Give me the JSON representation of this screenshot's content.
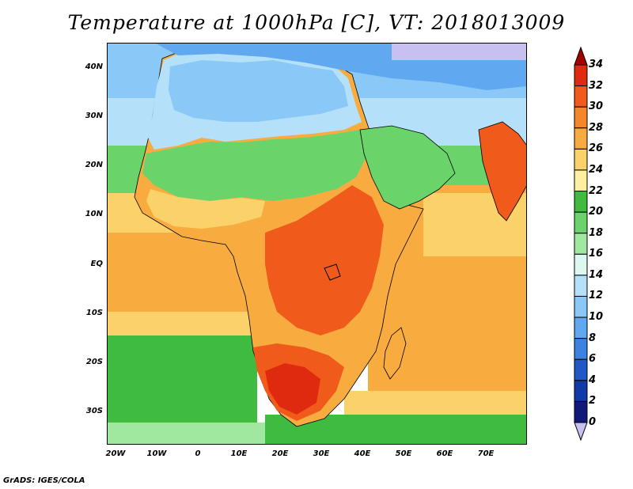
{
  "title": "Temperature at 1000hPa [C], VT: 2018013009",
  "footer": "GrADS: IGES/COLA",
  "map": {
    "type": "temperature-filled-contour",
    "region": "Africa and Middle East",
    "lon_range": [
      -20,
      80
    ],
    "lat_range": [
      -36,
      44
    ],
    "y_ticks": [
      "40N",
      "30N",
      "20N",
      "10N",
      "EQ",
      "10S",
      "20S",
      "30S"
    ],
    "x_ticks": [
      "20W",
      "10W",
      "0",
      "10E",
      "20E",
      "30E",
      "40E",
      "50E",
      "60E",
      "70E"
    ]
  },
  "colorbar": {
    "labels": [
      "34",
      "32",
      "30",
      "28",
      "26",
      "24",
      "22",
      "20",
      "18",
      "16",
      "14",
      "12",
      "10",
      "8",
      "6",
      "4",
      "2",
      "0"
    ],
    "colors": [
      "#a00000",
      "#e02a10",
      "#f05a1a",
      "#f5862a",
      "#f8ac40",
      "#fbd26a",
      "#fdf0a0",
      "#3fbb3f",
      "#6ad36a",
      "#a0e8a0",
      "#dcf8f0",
      "#b4e0fa",
      "#8ac8f8",
      "#60a8f0",
      "#3c82e0",
      "#2058c8",
      "#103aa8",
      "#101878",
      "#c8c0f0"
    ]
  }
}
